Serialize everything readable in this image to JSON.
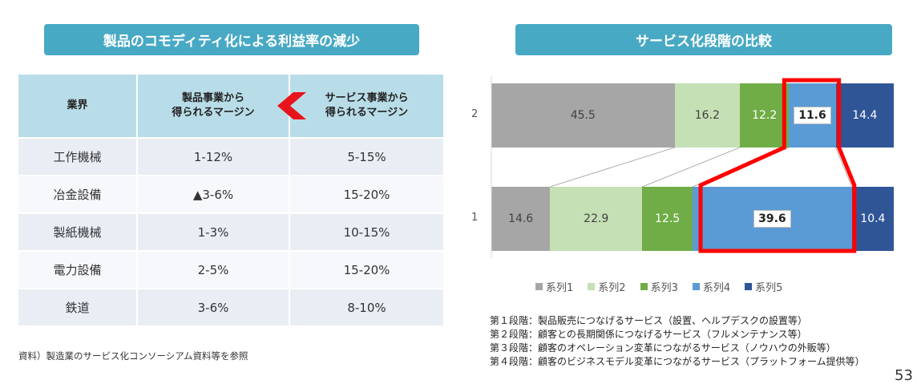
{
  "left_panel": {
    "title": "製品のコモディティ化による利益率の減少",
    "headers": {
      "industry": "業界",
      "product_margin": "製品事業から\n得られるマージン",
      "service_margin": "サービス事業から\n得られるマージン"
    },
    "rows": [
      {
        "industry": "工作機械",
        "product": "1-12%",
        "service": "5-15%"
      },
      {
        "industry": "冶金設備",
        "product": "▲3-6%",
        "service": "15-20%"
      },
      {
        "industry": "製紙機械",
        "product": "1-3%",
        "service": "10-15%"
      },
      {
        "industry": "電力設備",
        "product": "2-5%",
        "service": "15-20%"
      },
      {
        "industry": "鉄道",
        "product": "3-6%",
        "service": "8-10%"
      }
    ],
    "source_note": "資料）製造業のサービス化コンソーシアム資料等を参照"
  },
  "right_panel": {
    "title": "サービス化段階の比較",
    "stage_notes": [
      "第１段階：製品販売につなげるサービス（設置、ヘルプデスクの設置等）",
      "第２段階：顧客との長期関係につなげるサービス（フルメンテナンス等）",
      "第３段階：顧客のオペレーション変革につながるサービス（ノウハウの外販等）",
      "第４段階：顧客のビジネスモデル変革につながるサービス（プラットフォーム提供等）"
    ]
  },
  "chart_data": {
    "type": "bar",
    "orientation": "horizontal",
    "stacked": true,
    "categories": [
      "2",
      "1"
    ],
    "series": [
      {
        "name": "系列1",
        "values": [
          45.5,
          14.6
        ],
        "color": "#a6a6a6"
      },
      {
        "name": "系列2",
        "values": [
          16.2,
          22.9
        ],
        "color": "#c5e0b4"
      },
      {
        "name": "系列3",
        "values": [
          12.2,
          12.5
        ],
        "color": "#70ad47"
      },
      {
        "name": "系列4",
        "values": [
          11.6,
          39.6
        ],
        "color": "#5b9bd5"
      },
      {
        "name": "系列5",
        "values": [
          14.4,
          10.4
        ],
        "color": "#2f5597"
      }
    ],
    "highlighted_series": "系列4",
    "highlight_color": "#ff0000",
    "legend_position": "bottom",
    "grid": false
  },
  "page_number": "53",
  "colors": {
    "banner": "#48a9c4",
    "table_header": "#b8dde8",
    "arrow": "#e8141c"
  }
}
